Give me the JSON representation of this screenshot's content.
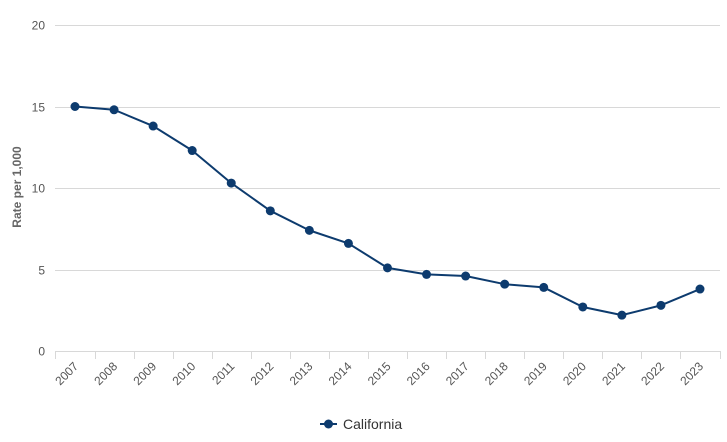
{
  "chart_data": {
    "type": "line",
    "title": "",
    "xlabel": "",
    "ylabel": "Rate per 1,000",
    "ylim": [
      0,
      20
    ],
    "yticks": [
      0,
      5,
      10,
      15,
      20
    ],
    "grid": true,
    "legend_position": "bottom-center",
    "categories": [
      "2007",
      "2008",
      "2009",
      "2010",
      "2011",
      "2012",
      "2013",
      "2014",
      "2015",
      "2016",
      "2017",
      "2018",
      "2019",
      "2020",
      "2021",
      "2022",
      "2023"
    ],
    "series": [
      {
        "name": "California",
        "color": "#0d3b6e",
        "values": [
          15.0,
          14.8,
          13.8,
          12.3,
          10.3,
          8.6,
          7.4,
          6.6,
          5.1,
          4.7,
          4.6,
          4.1,
          3.9,
          2.7,
          2.2,
          2.8,
          3.8
        ]
      }
    ]
  }
}
